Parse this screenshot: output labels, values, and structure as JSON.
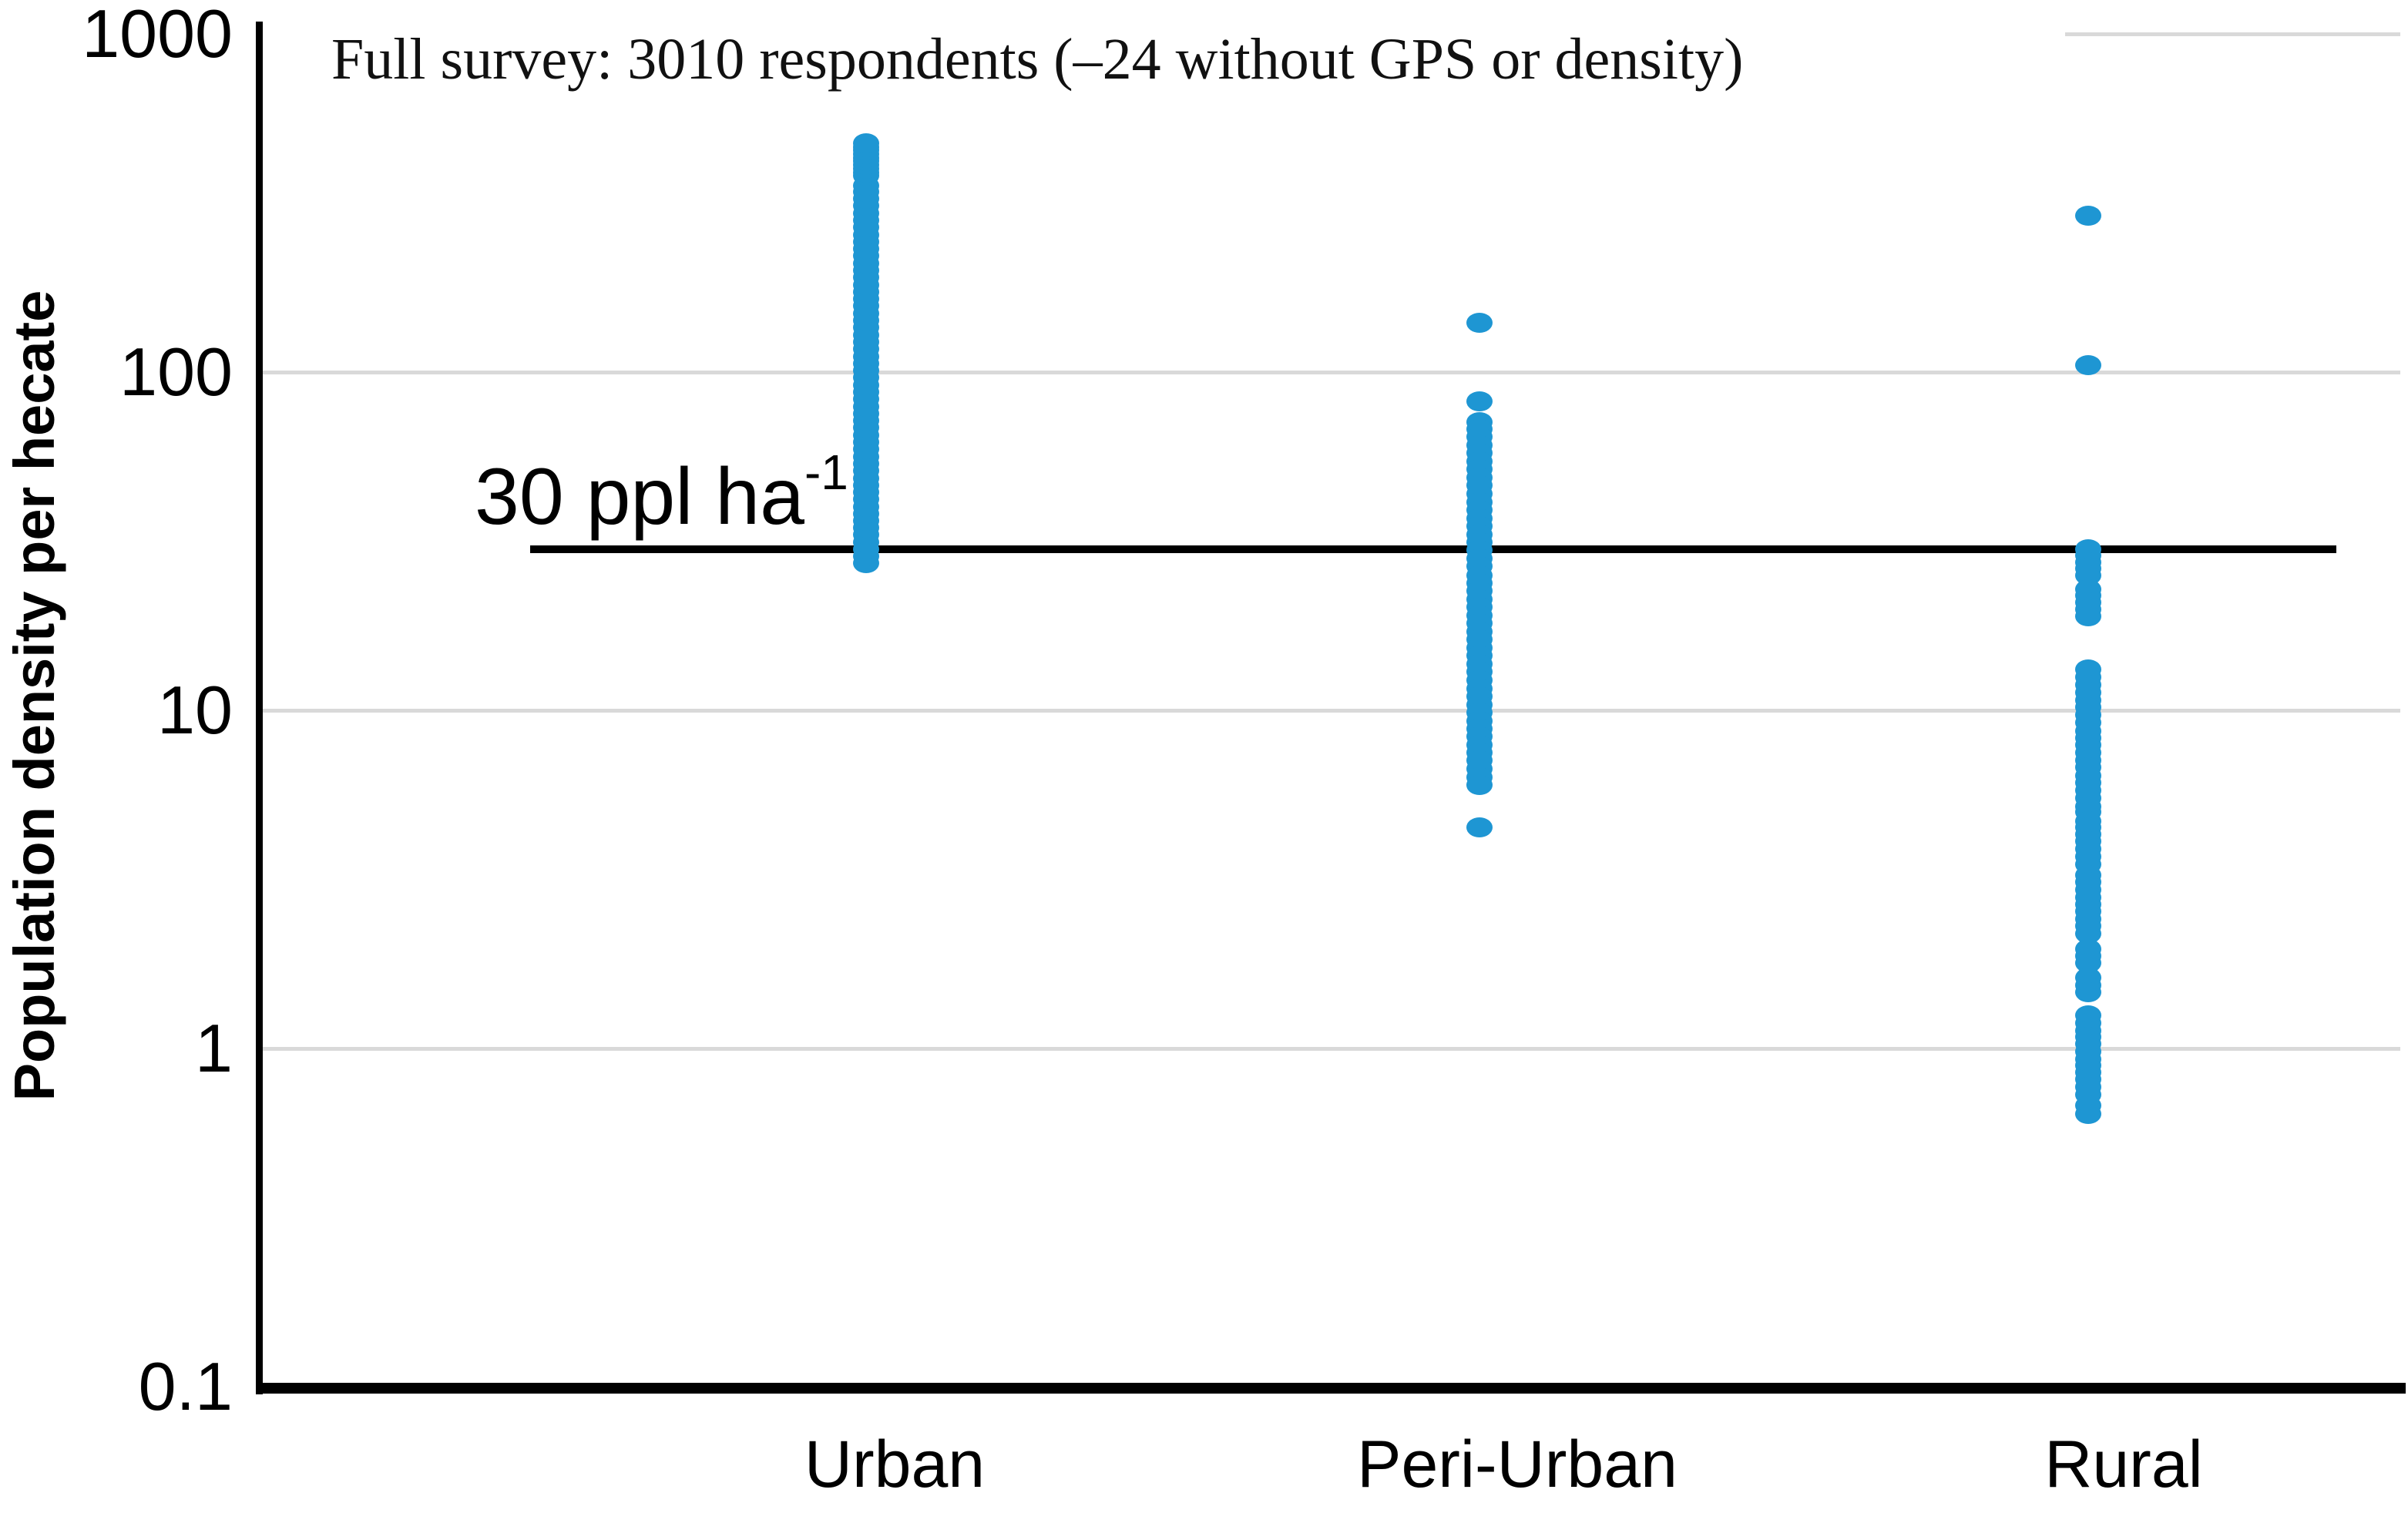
{
  "chart_data": {
    "type": "scatter",
    "variant": "categorical-strip-plot",
    "title": "Full survey: 3010 respondents (–24 without GPS or density)",
    "ylabel": "Population density per hecate",
    "xlabel": "",
    "yscale": "log",
    "ylim": [
      0.1,
      1000
    ],
    "grid": "horizontal",
    "legend_position": "none",
    "point_color": "#1e96d3",
    "gridline_color": "#d9d9d9",
    "axis_color": "#000000",
    "yticks": [
      {
        "value": 1000,
        "label": "1000"
      },
      {
        "value": 100,
        "label": "100"
      },
      {
        "value": 10,
        "label": "10"
      },
      {
        "value": 1,
        "label": "1"
      },
      {
        "value": 0.1,
        "label": "0.1"
      }
    ],
    "categories": [
      "Urban",
      "Peri-Urban",
      "Rural"
    ],
    "reference_line": {
      "value": 30,
      "label_main": "30 ppl ha",
      "label_superscript": "-1"
    },
    "series": [
      {
        "name": "Urban",
        "values": [
          27.2,
          28.5,
          29.9,
          31.4,
          33,
          34.6,
          36.3,
          38.1,
          40,
          42,
          44.1,
          46.3,
          48.6,
          51,
          53.6,
          56.3,
          59.1,
          62,
          65.1,
          68.4,
          71.8,
          75.4,
          79.1,
          83.1,
          87.2,
          91.6,
          96.2,
          101,
          106,
          111.3,
          116.9,
          122.7,
          128.8,
          135.3,
          142,
          149.1,
          156.6,
          164.4,
          172.6,
          181.2,
          190.3,
          199.8,
          209.8,
          220.3,
          231.3,
          242.9,
          255,
          267.7,
          281.1,
          295.2,
          309.9,
          325.4,
          341.7,
          355,
          380,
          390,
          400,
          410,
          420,
          430,
          441,
          452,
          463,
          474
        ]
      },
      {
        "name": "Peri-Urban",
        "values": [
          140,
          82,
          71,
          68,
          64.3,
          60.9,
          57.6,
          54.5,
          51.6,
          48.8,
          46.2,
          43.7,
          41.3,
          39.1,
          37,
          35,
          33.1,
          31.4,
          29.7,
          28.1,
          26.6,
          25.1,
          23.8,
          22.5,
          21.3,
          20.2,
          19.1,
          18.1,
          17.1,
          16.2,
          15.3,
          14.5,
          13.7,
          13,
          12.3,
          11.6,
          11,
          10.4,
          9.85,
          9.3,
          8.8,
          8.35,
          7.9,
          7.5,
          7.1,
          6.7,
          6.35,
          6,
          4.5
        ]
      },
      {
        "name": "Rural",
        "values": [
          290,
          105,
          30,
          28.7,
          27.4,
          26.2,
          25,
          22.8,
          21.8,
          20.8,
          19.9,
          19,
          13.2,
          12.5,
          11.9,
          11.3,
          10.7,
          10.2,
          9.7,
          9.2,
          8.7,
          8.3,
          7.9,
          7.5,
          7.1,
          6.8,
          6.4,
          6.1,
          5.8,
          5.5,
          5.2,
          5,
          4.7,
          4.5,
          4.3,
          4.1,
          3.9,
          3.7,
          3.5,
          3.25,
          3.1,
          2.95,
          2.8,
          2.67,
          2.54,
          2.42,
          2.3,
          2.19,
          1.97,
          1.88,
          1.79,
          1.62,
          1.54,
          1.47,
          1.25,
          1.19,
          1.13,
          1.08,
          1.03,
          0.98,
          0.93,
          0.89,
          0.85,
          0.81,
          0.77,
          0.73,
          0.68,
          0.64
        ]
      }
    ]
  }
}
